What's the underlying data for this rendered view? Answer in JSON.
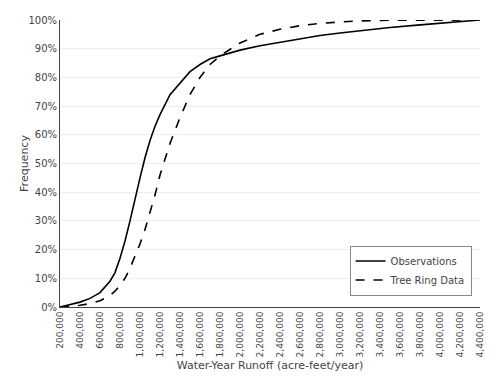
{
  "chart_data": {
    "type": "line",
    "xlabel": "Water-Year Runoff (acre-feet/year)",
    "ylabel": "Frequency",
    "x": [
      200000,
      300000,
      400000,
      500000,
      600000,
      700000,
      750000,
      800000,
      850000,
      900000,
      950000,
      1000000,
      1050000,
      1100000,
      1150000,
      1200000,
      1300000,
      1400000,
      1500000,
      1600000,
      1700000,
      1800000,
      2000000,
      2200000,
      2400000,
      2600000,
      2800000,
      3000000,
      3200000,
      3500000,
      3800000,
      4000000,
      4200000,
      4400000
    ],
    "series": [
      {
        "name": "Observations",
        "color": "#000000",
        "line_style": "solid",
        "values": [
          0.0,
          0.008,
          0.017,
          0.03,
          0.05,
          0.09,
          0.12,
          0.17,
          0.23,
          0.3,
          0.38,
          0.45,
          0.52,
          0.58,
          0.63,
          0.67,
          0.74,
          0.78,
          0.82,
          0.845,
          0.865,
          0.875,
          0.895,
          0.91,
          0.922,
          0.935,
          0.946,
          0.955,
          0.963,
          0.974,
          0.983,
          0.988,
          0.994,
          1.0
        ]
      },
      {
        "name": "Tree Ring Data",
        "color": "#000000",
        "line_style": "dashed",
        "values": [
          0.0,
          0.003,
          0.006,
          0.012,
          0.022,
          0.04,
          0.055,
          0.075,
          0.1,
          0.135,
          0.175,
          0.22,
          0.27,
          0.33,
          0.39,
          0.46,
          0.57,
          0.66,
          0.74,
          0.8,
          0.845,
          0.875,
          0.92,
          0.95,
          0.968,
          0.98,
          0.988,
          0.993,
          0.997,
          0.999,
          1.0,
          1.0,
          1.0,
          1.0
        ]
      }
    ],
    "xlim": [
      200000,
      4400000
    ],
    "ylim": [
      0,
      1.0
    ],
    "xticks": [
      {
        "value": 200000,
        "label": "200,000"
      },
      {
        "value": 400000,
        "label": "400,000"
      },
      {
        "value": 600000,
        "label": "600,000"
      },
      {
        "value": 800000,
        "label": "800,000"
      },
      {
        "value": 1000000,
        "label": "1,000,000"
      },
      {
        "value": 1200000,
        "label": "1,200,000"
      },
      {
        "value": 1400000,
        "label": "1,400,000"
      },
      {
        "value": 1600000,
        "label": "1,600,000"
      },
      {
        "value": 1800000,
        "label": "1,800,000"
      },
      {
        "value": 2000000,
        "label": "2,000,000"
      },
      {
        "value": 2200000,
        "label": "2,200,000"
      },
      {
        "value": 2400000,
        "label": "2,400,000"
      },
      {
        "value": 2600000,
        "label": "2,600,000"
      },
      {
        "value": 2800000,
        "label": "2,800,000"
      },
      {
        "value": 3000000,
        "label": "3,000,000"
      },
      {
        "value": 3200000,
        "label": "3,200,000"
      },
      {
        "value": 3400000,
        "label": "3,400,000"
      },
      {
        "value": 3600000,
        "label": "3,600,000"
      },
      {
        "value": 3800000,
        "label": "3,800,000"
      },
      {
        "value": 4000000,
        "label": "4,000,000"
      },
      {
        "value": 4200000,
        "label": "4,200,000"
      },
      {
        "value": 4400000,
        "label": "4,400,000"
      }
    ],
    "yticks": [
      {
        "value": 0.0,
        "label": "0%"
      },
      {
        "value": 0.1,
        "label": "10%"
      },
      {
        "value": 0.2,
        "label": "20%"
      },
      {
        "value": 0.3,
        "label": "30%"
      },
      {
        "value": 0.4,
        "label": "40%"
      },
      {
        "value": 0.5,
        "label": "50%"
      },
      {
        "value": 0.6,
        "label": "60%"
      },
      {
        "value": 0.7,
        "label": "70%"
      },
      {
        "value": 0.8,
        "label": "80%"
      },
      {
        "value": 0.9,
        "label": "90%"
      },
      {
        "value": 1.0,
        "label": "100%"
      }
    ],
    "grid": "y",
    "legend": "lower right"
  }
}
